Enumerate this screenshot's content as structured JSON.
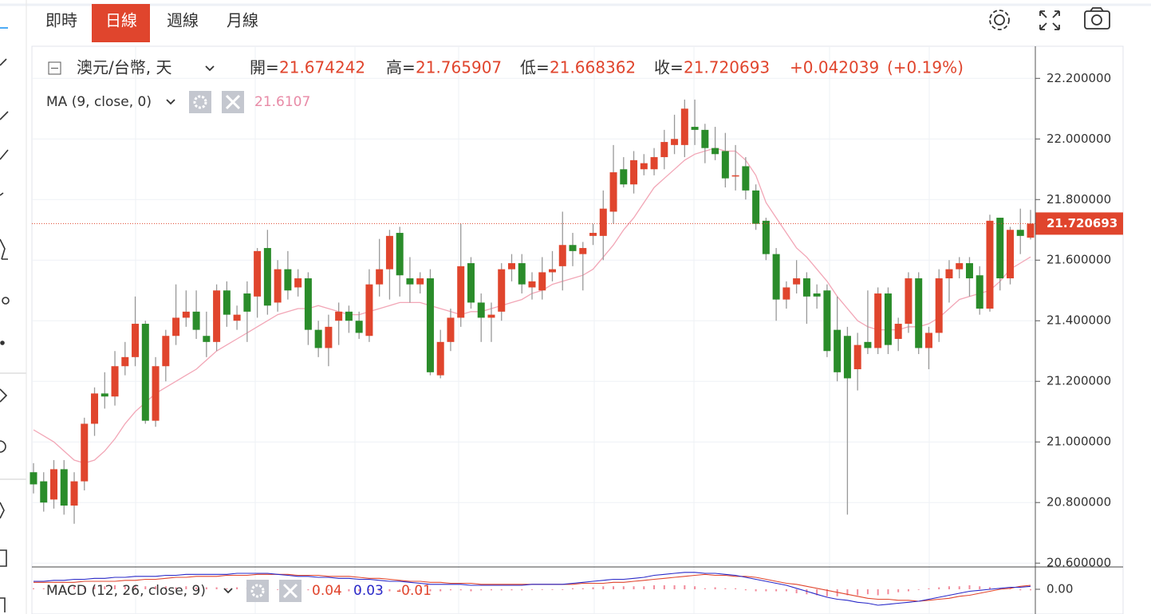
{
  "toolbar": {
    "tabs": [
      "即時",
      "日線",
      "週線",
      "月線"
    ],
    "active": 1
  },
  "chart_data": {
    "type": "candlestick",
    "symbol": "澳元/台幣, 天",
    "labels": {
      "open": "開=",
      "high": "高=",
      "low": "低=",
      "close": "收="
    },
    "change": {
      "value": 0.042039,
      "label": "+0.042039"
    },
    "change_pct": {
      "value": 0.19,
      "label": "(+0.19%)"
    },
    "up_color": "#e0452d",
    "down_color": "#2a8c2a",
    "ylim": [
      20.59,
      22.306
    ],
    "yticks": [
      {
        "value": 20.6,
        "label": "20.600000"
      },
      {
        "value": 20.8,
        "label": "20.800000"
      },
      {
        "value": 21.0,
        "label": "21.000000"
      },
      {
        "value": 21.2,
        "label": "21.200000"
      },
      {
        "value": 21.4,
        "label": "21.400000"
      },
      {
        "value": 21.6,
        "label": "21.600000"
      },
      {
        "value": 21.8,
        "label": "21.800000"
      },
      {
        "value": 22.0,
        "label": "22.000000"
      },
      {
        "value": 22.2,
        "label": "22.200000"
      }
    ],
    "grid": true,
    "ohlc": [
      [
        20.9,
        20.93,
        20.83,
        20.86
      ],
      [
        20.87,
        20.9,
        20.77,
        20.8
      ],
      [
        20.81,
        20.94,
        20.78,
        20.91
      ],
      [
        20.91,
        20.94,
        20.76,
        20.79
      ],
      [
        20.79,
        20.9,
        20.73,
        20.87
      ],
      [
        20.87,
        21.08,
        20.84,
        21.06
      ],
      [
        21.06,
        21.18,
        21.02,
        21.16
      ],
      [
        21.16,
        21.23,
        21.11,
        21.15
      ],
      [
        21.15,
        21.3,
        21.12,
        21.25
      ],
      [
        21.25,
        21.33,
        21.22,
        21.28
      ],
      [
        21.28,
        21.48,
        21.25,
        21.39
      ],
      [
        21.39,
        21.4,
        21.06,
        21.07
      ],
      [
        21.07,
        21.28,
        21.05,
        21.25
      ],
      [
        21.25,
        21.37,
        21.2,
        21.35
      ],
      [
        21.35,
        21.52,
        21.32,
        21.41
      ],
      [
        21.41,
        21.5,
        21.38,
        21.43
      ],
      [
        21.43,
        21.5,
        21.34,
        21.37
      ],
      [
        21.35,
        21.43,
        21.28,
        21.33
      ],
      [
        21.33,
        21.52,
        21.3,
        21.5
      ],
      [
        21.5,
        21.53,
        21.38,
        21.42
      ],
      [
        21.4,
        21.45,
        21.37,
        21.42
      ],
      [
        21.49,
        21.53,
        21.33,
        21.43
      ],
      [
        21.48,
        21.64,
        21.41,
        21.63
      ],
      [
        21.64,
        21.7,
        21.42,
        21.45
      ],
      [
        21.46,
        21.6,
        21.43,
        21.57
      ],
      [
        21.57,
        21.63,
        21.47,
        21.5
      ],
      [
        21.51,
        21.57,
        21.48,
        21.54
      ],
      [
        21.54,
        21.56,
        21.32,
        21.37
      ],
      [
        21.37,
        21.4,
        21.28,
        21.31
      ],
      [
        21.31,
        21.42,
        21.25,
        21.38
      ],
      [
        21.4,
        21.46,
        21.32,
        21.43
      ],
      [
        21.43,
        21.45,
        21.36,
        21.4
      ],
      [
        21.4,
        21.43,
        21.34,
        21.36
      ],
      [
        21.35,
        21.57,
        21.33,
        21.52
      ],
      [
        21.52,
        21.67,
        21.48,
        21.57
      ],
      [
        21.57,
        21.7,
        21.47,
        21.68
      ],
      [
        21.69,
        21.71,
        21.48,
        21.55
      ],
      [
        21.54,
        21.61,
        21.46,
        21.52
      ],
      [
        21.52,
        21.56,
        21.49,
        21.54
      ],
      [
        21.54,
        21.57,
        21.22,
        21.23
      ],
      [
        21.22,
        21.37,
        21.21,
        21.33
      ],
      [
        21.33,
        21.44,
        21.3,
        21.41
      ],
      [
        21.41,
        21.72,
        21.38,
        21.58
      ],
      [
        21.59,
        21.61,
        21.44,
        21.46
      ],
      [
        21.46,
        21.49,
        21.33,
        21.41
      ],
      [
        21.41,
        21.46,
        21.33,
        21.42
      ],
      [
        21.43,
        21.59,
        21.4,
        21.57
      ],
      [
        21.57,
        21.62,
        21.53,
        21.59
      ],
      [
        21.59,
        21.62,
        21.49,
        21.52
      ],
      [
        21.51,
        21.56,
        21.47,
        21.53
      ],
      [
        21.5,
        21.61,
        21.47,
        21.56
      ],
      [
        21.56,
        21.63,
        21.53,
        21.57
      ],
      [
        21.58,
        21.76,
        21.5,
        21.65
      ],
      [
        21.65,
        21.69,
        21.58,
        21.63
      ],
      [
        21.62,
        21.66,
        21.5,
        21.64
      ],
      [
        21.68,
        21.72,
        21.65,
        21.69
      ],
      [
        21.68,
        21.83,
        21.6,
        21.77
      ],
      [
        21.76,
        21.98,
        21.72,
        21.89
      ],
      [
        21.9,
        21.94,
        21.84,
        21.85
      ],
      [
        21.85,
        21.96,
        21.82,
        21.93
      ],
      [
        21.9,
        21.95,
        21.88,
        21.92
      ],
      [
        21.9,
        21.97,
        21.88,
        21.94
      ],
      [
        21.94,
        22.03,
        21.9,
        21.99
      ],
      [
        21.98,
        22.08,
        21.95,
        22.0
      ],
      [
        21.98,
        22.13,
        21.94,
        22.1
      ],
      [
        22.04,
        22.13,
        21.98,
        22.03
      ],
      [
        22.03,
        22.05,
        21.92,
        21.97
      ],
      [
        21.97,
        22.04,
        21.93,
        21.95
      ],
      [
        21.96,
        22.02,
        21.84,
        21.87
      ],
      [
        21.88,
        21.98,
        21.83,
        21.88
      ],
      [
        21.91,
        21.94,
        21.8,
        21.83
      ],
      [
        21.83,
        21.85,
        21.7,
        21.72
      ],
      [
        21.73,
        21.74,
        21.6,
        21.62
      ],
      [
        21.62,
        21.64,
        21.4,
        21.47
      ],
      [
        21.47,
        21.53,
        21.44,
        21.51
      ],
      [
        21.52,
        21.6,
        21.49,
        21.54
      ],
      [
        21.54,
        21.56,
        21.39,
        21.48
      ],
      [
        21.49,
        21.52,
        21.44,
        21.48
      ],
      [
        21.5,
        21.52,
        21.28,
        21.3
      ],
      [
        21.37,
        21.48,
        21.2,
        21.23
      ],
      [
        21.35,
        21.38,
        20.76,
        21.21
      ],
      [
        21.24,
        21.36,
        21.17,
        21.32
      ],
      [
        21.33,
        21.5,
        21.29,
        21.31
      ],
      [
        21.31,
        21.51,
        21.29,
        21.49
      ],
      [
        21.49,
        21.51,
        21.29,
        21.32
      ],
      [
        21.34,
        21.41,
        21.3,
        21.39
      ],
      [
        21.39,
        21.56,
        21.36,
        21.54
      ],
      [
        21.54,
        21.56,
        21.29,
        21.31
      ],
      [
        21.31,
        21.38,
        21.24,
        21.36
      ],
      [
        21.36,
        21.57,
        21.33,
        21.54
      ],
      [
        21.54,
        21.6,
        21.46,
        21.57
      ],
      [
        21.57,
        21.61,
        21.54,
        21.59
      ],
      [
        21.59,
        21.61,
        21.48,
        21.54
      ],
      [
        21.55,
        21.58,
        21.42,
        21.44
      ],
      [
        21.44,
        21.75,
        21.43,
        21.73
      ],
      [
        21.74,
        21.74,
        21.5,
        21.54
      ],
      [
        21.54,
        21.71,
        21.52,
        21.7
      ],
      [
        21.7,
        21.77,
        21.62,
        21.68
      ],
      [
        21.674242,
        21.765907,
        21.668362,
        21.720693
      ]
    ],
    "ma": {
      "name": "MA (9, close, 0)",
      "color": "#f2a6b6",
      "values": [
        21.04,
        21.02,
        21.0,
        20.97,
        20.94,
        20.93,
        20.94,
        20.97,
        21.01,
        21.06,
        21.1,
        21.13,
        21.16,
        21.18,
        21.2,
        21.22,
        21.24,
        21.27,
        21.3,
        21.32,
        21.34,
        21.36,
        21.38,
        21.4,
        21.42,
        21.43,
        21.44,
        21.44,
        21.45,
        21.44,
        21.43,
        21.42,
        21.42,
        21.43,
        21.44,
        21.45,
        21.46,
        21.46,
        21.46,
        21.45,
        21.44,
        21.43,
        21.42,
        21.43,
        21.43,
        21.44,
        21.45,
        21.46,
        21.47,
        21.49,
        21.5,
        21.52,
        21.53,
        21.54,
        21.55,
        21.57,
        21.61,
        21.65,
        21.7,
        21.74,
        21.79,
        21.84,
        21.87,
        21.9,
        21.93,
        21.95,
        21.96,
        21.97,
        21.96,
        21.96,
        21.93,
        21.88,
        21.79,
        21.74,
        21.69,
        21.64,
        21.61,
        21.57,
        21.53,
        21.48,
        21.44,
        21.4,
        21.38,
        21.37,
        21.37,
        21.37,
        21.38,
        21.38,
        21.39,
        21.41,
        21.44,
        21.47,
        21.48,
        21.49,
        21.5,
        21.53,
        21.57,
        21.59,
        21.6107
      ]
    },
    "macd": {
      "name": "MACD (12, 26, close, 9)",
      "ylim": [
        -0.2,
        0.2
      ],
      "yticks": [
        {
          "value": 0,
          "label": "0.00"
        }
      ],
      "series": [
        {
          "color": "#e0452d",
          "values": [
            0.07,
            0.07,
            0.07,
            0.07,
            0.07,
            0.08,
            0.08,
            0.08,
            0.08,
            0.09,
            0.09,
            0.1,
            0.1,
            0.11,
            0.12,
            0.12,
            0.13,
            0.13,
            0.13,
            0.14,
            0.14,
            0.14,
            0.15,
            0.15,
            0.15,
            0.15,
            0.14,
            0.14,
            0.14,
            0.13,
            0.13,
            0.13,
            0.12,
            0.11,
            0.11,
            0.1,
            0.09,
            0.08,
            0.08,
            0.07,
            0.07,
            0.06,
            0.06,
            0.06,
            0.05,
            0.05,
            0.05,
            0.05,
            0.05,
            0.05,
            0.05,
            0.05,
            0.05,
            0.05,
            0.06,
            0.06,
            0.06,
            0.07,
            0.07,
            0.08,
            0.09,
            0.1,
            0.11,
            0.12,
            0.13,
            0.14,
            0.15,
            0.14,
            0.14,
            0.13,
            0.13,
            0.12,
            0.1,
            0.08,
            0.06,
            0.05,
            0.03,
            0.01,
            -0.01,
            -0.03,
            -0.05,
            -0.07,
            -0.09,
            -0.1,
            -0.1,
            -0.11,
            -0.11,
            -0.12,
            -0.11,
            -0.1,
            -0.09,
            -0.07,
            -0.06,
            -0.04,
            -0.02,
            0,
            0.01,
            0.03,
            0.04
          ],
          "value_labels": "0.04"
        },
        {
          "color": "#2828c8",
          "values": [
            0.08,
            0.08,
            0.09,
            0.09,
            0.1,
            0.1,
            0.11,
            0.11,
            0.12,
            0.12,
            0.13,
            0.13,
            0.13,
            0.14,
            0.14,
            0.15,
            0.15,
            0.15,
            0.15,
            0.15,
            0.16,
            0.16,
            0.16,
            0.16,
            0.15,
            0.14,
            0.13,
            0.13,
            0.12,
            0.12,
            0.11,
            0.11,
            0.1,
            0.1,
            0.09,
            0.08,
            0.08,
            0.07,
            0.06,
            0.05,
            0.05,
            0.05,
            0.05,
            0.04,
            0.04,
            0.04,
            0.04,
            0.04,
            0.04,
            0.05,
            0.05,
            0.05,
            0.05,
            0.06,
            0.07,
            0.08,
            0.09,
            0.1,
            0.1,
            0.11,
            0.12,
            0.14,
            0.15,
            0.16,
            0.17,
            0.17,
            0.16,
            0.16,
            0.15,
            0.14,
            0.12,
            0.1,
            0.08,
            0.06,
            0.04,
            0.01,
            -0.02,
            -0.05,
            -0.08,
            -0.1,
            -0.11,
            -0.13,
            -0.14,
            -0.16,
            -0.15,
            -0.14,
            -0.13,
            -0.12,
            -0.1,
            -0.08,
            -0.06,
            -0.04,
            -0.02,
            -0.01,
            0,
            0.01,
            0.02,
            0.02,
            0.03
          ],
          "value_labels": "0.03"
        }
      ],
      "histogram": {
        "color": "#f28a9a",
        "values": [
          0.01,
          0.01,
          0.02,
          0.02,
          0.03,
          0.02,
          0.03,
          0.03,
          0.04,
          0.03,
          0.04,
          0.03,
          0.03,
          0.03,
          0.02,
          0.03,
          0.02,
          0.02,
          0.02,
          0.01,
          0.02,
          0.02,
          0.01,
          0.01,
          0,
          -0.01,
          -0.01,
          -0.01,
          -0.02,
          -0.01,
          -0.02,
          -0.02,
          -0.02,
          -0.01,
          -0.02,
          -0.02,
          -0.01,
          -0.01,
          -0.02,
          -0.02,
          -0.02,
          -0.01,
          -0.01,
          -0.02,
          -0.01,
          -0.01,
          -0.01,
          -0.01,
          -0.01,
          0,
          0,
          0,
          0,
          0.01,
          0.01,
          0.02,
          0.03,
          0.03,
          0.03,
          0.03,
          0.03,
          0.04,
          0.04,
          0.04,
          0.04,
          0.03,
          0.01,
          0.02,
          0.01,
          0.01,
          -0.01,
          -0.02,
          -0.02,
          -0.02,
          -0.02,
          -0.04,
          -0.05,
          -0.06,
          -0.07,
          -0.07,
          -0.06,
          -0.06,
          -0.05,
          -0.06,
          -0.05,
          -0.03,
          -0.02,
          0,
          0.01,
          0.02,
          0.03,
          0.03,
          0.04,
          0.03,
          0.02,
          0.01,
          0.01,
          -0.01,
          -0.01
        ],
        "value_labels": "-0.01"
      }
    }
  }
}
